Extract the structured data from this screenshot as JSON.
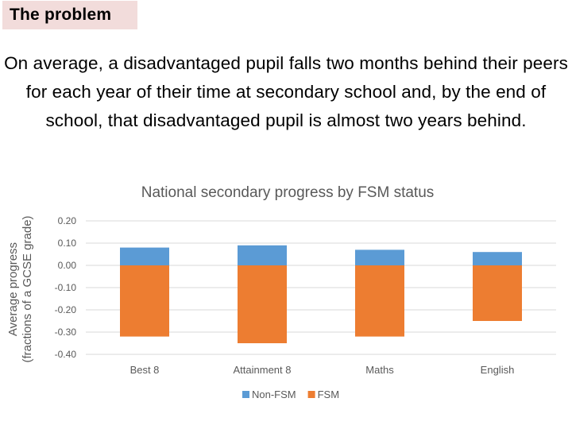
{
  "header": {
    "tag_label": "The problem"
  },
  "intro": {
    "text": "On average, a disadvantaged pupil falls two months behind their peers for each year of their time at secondary school and, by the end of school, that disadvantaged pupil is almost two years behind."
  },
  "chart_data": {
    "type": "bar",
    "title": "National secondary progress by FSM status",
    "ylabel": "Average progress (fractions of a GCSE grade)",
    "xlabel": "",
    "categories": [
      "Best 8",
      "Attainment 8",
      "Maths",
      "English"
    ],
    "series": [
      {
        "name": "Non-FSM",
        "values": [
          0.08,
          0.09,
          0.07,
          0.06
        ],
        "color": "#5b9bd5"
      },
      {
        "name": "FSM",
        "values": [
          -0.32,
          -0.35,
          -0.32,
          -0.25
        ],
        "color": "#ed7d31"
      }
    ],
    "ylim": [
      -0.4,
      0.2
    ],
    "yticks": [
      0.2,
      0.1,
      0.0,
      -0.1,
      -0.2,
      -0.3,
      -0.4
    ],
    "ytick_labels": [
      "0.20",
      "0.10",
      "0.00",
      "-0.10",
      "-0.20",
      "-0.30",
      "-0.40"
    ],
    "grid": true,
    "legend": "bottom-center"
  }
}
